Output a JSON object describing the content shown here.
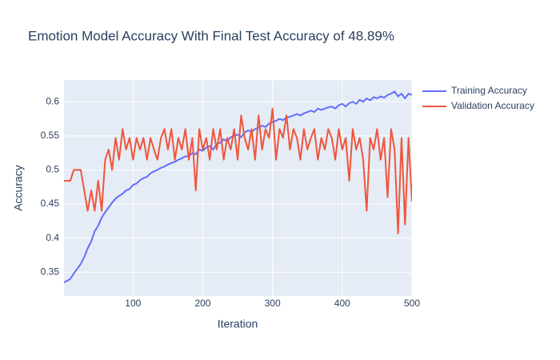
{
  "chart_data": {
    "type": "line",
    "title": "Emotion Model Accuracy With Final Test Accuracy of 48.89%",
    "x_label": "Iteration",
    "y_label": "Accuracy",
    "x": [
      1,
      5,
      10,
      15,
      20,
      25,
      30,
      35,
      40,
      45,
      50,
      55,
      60,
      65,
      70,
      75,
      80,
      85,
      90,
      95,
      100,
      105,
      110,
      115,
      120,
      125,
      130,
      135,
      140,
      145,
      150,
      155,
      160,
      165,
      170,
      175,
      180,
      185,
      190,
      195,
      200,
      205,
      210,
      215,
      220,
      225,
      230,
      235,
      240,
      245,
      250,
      255,
      260,
      265,
      270,
      275,
      280,
      285,
      290,
      295,
      300,
      305,
      310,
      315,
      320,
      325,
      330,
      335,
      340,
      345,
      350,
      355,
      360,
      365,
      370,
      375,
      380,
      385,
      390,
      395,
      400,
      405,
      410,
      415,
      420,
      425,
      430,
      435,
      440,
      445,
      450,
      455,
      460,
      465,
      470,
      475,
      480,
      485,
      490,
      495,
      500
    ],
    "series": [
      {
        "name": "Training Accuracy",
        "color": "#636efa",
        "values": [
          0.335,
          0.337,
          0.34,
          0.348,
          0.355,
          0.362,
          0.372,
          0.385,
          0.395,
          0.41,
          0.418,
          0.43,
          0.438,
          0.445,
          0.452,
          0.458,
          0.462,
          0.465,
          0.47,
          0.472,
          0.478,
          0.48,
          0.485,
          0.488,
          0.49,
          0.495,
          0.498,
          0.5,
          0.503,
          0.505,
          0.508,
          0.51,
          0.512,
          0.515,
          0.517,
          0.52,
          0.52,
          0.525,
          0.523,
          0.53,
          0.528,
          0.533,
          0.535,
          0.53,
          0.538,
          0.54,
          0.545,
          0.542,
          0.548,
          0.55,
          0.552,
          0.548,
          0.555,
          0.558,
          0.556,
          0.56,
          0.562,
          0.565,
          0.563,
          0.568,
          0.57,
          0.572,
          0.575,
          0.573,
          0.577,
          0.578,
          0.58,
          0.582,
          0.58,
          0.583,
          0.585,
          0.587,
          0.585,
          0.59,
          0.588,
          0.59,
          0.592,
          0.593,
          0.59,
          0.595,
          0.597,
          0.593,
          0.598,
          0.6,
          0.597,
          0.603,
          0.6,
          0.605,
          0.602,
          0.607,
          0.605,
          0.608,
          0.606,
          0.61,
          0.612,
          0.615,
          0.608,
          0.612,
          0.605,
          0.612,
          0.61
        ]
      },
      {
        "name": "Validation Accuracy",
        "color": "#EF553B",
        "values": [
          0.484,
          0.484,
          0.484,
          0.5,
          0.5,
          0.5,
          0.47,
          0.44,
          0.47,
          0.44,
          0.484,
          0.44,
          0.515,
          0.53,
          0.5,
          0.547,
          0.515,
          0.56,
          0.53,
          0.547,
          0.515,
          0.547,
          0.53,
          0.547,
          0.515,
          0.547,
          0.53,
          0.515,
          0.547,
          0.56,
          0.53,
          0.56,
          0.515,
          0.547,
          0.53,
          0.56,
          0.515,
          0.547,
          0.47,
          0.56,
          0.53,
          0.547,
          0.515,
          0.56,
          0.53,
          0.56,
          0.515,
          0.547,
          0.53,
          0.56,
          0.515,
          0.58,
          0.547,
          0.53,
          0.56,
          0.515,
          0.58,
          0.53,
          0.56,
          0.547,
          0.59,
          0.515,
          0.56,
          0.547,
          0.58,
          0.53,
          0.56,
          0.547,
          0.515,
          0.56,
          0.53,
          0.547,
          0.56,
          0.515,
          0.547,
          0.53,
          0.56,
          0.547,
          0.515,
          0.56,
          0.53,
          0.547,
          0.484,
          0.56,
          0.53,
          0.547,
          0.515,
          0.44,
          0.547,
          0.53,
          0.56,
          0.515,
          0.547,
          0.46,
          0.56,
          0.53,
          0.407,
          0.547,
          0.42,
          0.547,
          0.454
        ]
      }
    ],
    "xlim": [
      1,
      500
    ],
    "xticks": [
      100,
      200,
      300,
      400,
      500
    ],
    "ylim": [
      0.315,
      0.632
    ],
    "yticks": [
      0.35,
      0.4,
      0.45,
      0.5,
      0.55,
      0.6
    ],
    "grid": true,
    "legend": "right"
  }
}
